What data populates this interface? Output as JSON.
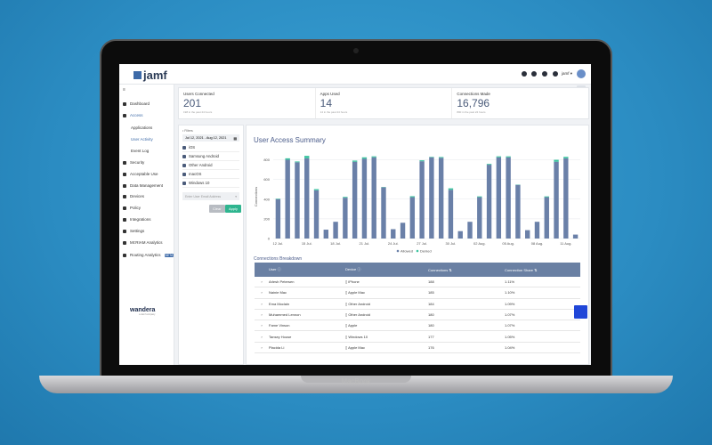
{
  "app": {
    "logo": "jamf",
    "account": "jamf ▾"
  },
  "header_icons": [
    "bell-icon",
    "download-icon",
    "help-icon",
    "gear-icon"
  ],
  "sidebar": {
    "items": [
      {
        "label": "Dashboard",
        "icon": "grid-icon"
      },
      {
        "label": "Access",
        "icon": "people-icon",
        "active": true
      },
      {
        "label": "Applications",
        "sub": true
      },
      {
        "label": "User Activity",
        "sub": true,
        "active": true
      },
      {
        "label": "Event Log",
        "sub": true
      },
      {
        "label": "Security",
        "icon": "lock-icon"
      },
      {
        "label": "Acceptable Use",
        "icon": "car-icon"
      },
      {
        "label": "Data Management",
        "icon": "database-icon"
      },
      {
        "label": "Devices",
        "icon": "devices-icon"
      },
      {
        "label": "Policy",
        "icon": "policy-icon"
      },
      {
        "label": "Integrations",
        "icon": "share-icon"
      },
      {
        "label": "Settings",
        "icon": "gear-icon"
      },
      {
        "label": "MI:RIAM Analytics",
        "icon": "miriam-icon"
      },
      {
        "label": "Routing Analytics",
        "icon": "routing-icon",
        "badge": "BETA"
      }
    ],
    "footer_logo": "wandera",
    "footer_sub": "a Jamf company"
  },
  "stats": [
    {
      "label": "Users Connected",
      "value": "201",
      "sub": "198 in the past 24 hours"
    },
    {
      "label": "Apps Used",
      "value": "14",
      "sub": "14 in the past 24 hours"
    },
    {
      "label": "Connections Made",
      "value": "16,796",
      "sub": "800 in the past 24 hours"
    }
  ],
  "filters": {
    "title": "• Filters",
    "date_range": "Jul 12, 2021 - Aug 12, 2021",
    "options": [
      "iOS",
      "Samsung Android",
      "Other Android",
      "macOS",
      "Windows 10"
    ],
    "email_placeholder": "Enter User Email Address",
    "clear": "Clear",
    "apply": "Apply"
  },
  "chart_data": {
    "type": "bar",
    "stacked": true,
    "title": "User Access Summary",
    "ylabel": "Connections",
    "xlabel": "",
    "ylim": [
      0,
      850
    ],
    "yticks": [
      0,
      200,
      400,
      600,
      800
    ],
    "grid": true,
    "legend": "bottom",
    "xtick_labels": [
      "12 Jul.",
      "15 Jul.",
      "18 Jul.",
      "21 Jul.",
      "24 Jul.",
      "27 Jul.",
      "30 Jul.",
      "02 Aug.",
      "05 Aug.",
      "08 Aug.",
      "11 Aug."
    ],
    "categories": [
      "12 Jul",
      "13 Jul",
      "14 Jul",
      "15 Jul",
      "16 Jul",
      "17 Jul",
      "18 Jul",
      "19 Jul",
      "20 Jul",
      "21 Jul",
      "22 Jul",
      "23 Jul",
      "24 Jul",
      "25 Jul",
      "26 Jul",
      "27 Jul",
      "28 Jul",
      "29 Jul",
      "30 Jul",
      "31 Jul",
      "01 Aug",
      "02 Aug",
      "03 Aug",
      "04 Aug",
      "05 Aug",
      "06 Aug",
      "07 Aug",
      "08 Aug",
      "09 Aug",
      "10 Aug",
      "11 Aug",
      "12 Aug"
    ],
    "series": [
      {
        "name": "Allowed",
        "color": "#6a80a8",
        "values": [
          400,
          800,
          775,
          815,
          490,
          90,
          170,
          415,
          780,
          810,
          825,
          520,
          95,
          160,
          420,
          785,
          825,
          820,
          495,
          75,
          170,
          420,
          750,
          825,
          825,
          545,
          85,
          170,
          420,
          780,
          815,
          40
        ]
      },
      {
        "name": "Denied",
        "color": "#3cc4a0",
        "values": [
          5,
          15,
          8,
          25,
          12,
          0,
          0,
          8,
          12,
          15,
          10,
          3,
          0,
          0,
          10,
          10,
          5,
          8,
          15,
          0,
          0,
          8,
          8,
          10,
          10,
          3,
          0,
          0,
          8,
          20,
          15,
          0
        ]
      }
    ]
  },
  "table": {
    "title": "Connections Breakdown",
    "columns": [
      "User",
      "Device",
      "Connections",
      "Connection Share"
    ],
    "rows": [
      [
        "Arlesh Petersen",
        "iPhone",
        "188",
        "1.11%"
      ],
      [
        "Nainie Mac",
        "Apple Mac",
        "185",
        "1.10%"
      ],
      [
        "Ema Moclain",
        "Other Android",
        "184",
        "1.09%"
      ],
      [
        "Muhammed Lennon",
        "Other Android",
        "180",
        "1.07%"
      ],
      [
        "Fame Vinson",
        "Apple",
        "180",
        "1.07%"
      ],
      [
        "Tansey House",
        "Windows 10",
        "177",
        "1.05%"
      ],
      [
        "Placida Li",
        "Apple Mac",
        "176",
        "1.04%"
      ]
    ]
  },
  "device": {
    "brand": "MacBook"
  },
  "colors": {
    "accent": "#3d6aa8",
    "apply": "#2fb58f",
    "table_header": "#6a80a3",
    "background": "#2b8cc2"
  }
}
